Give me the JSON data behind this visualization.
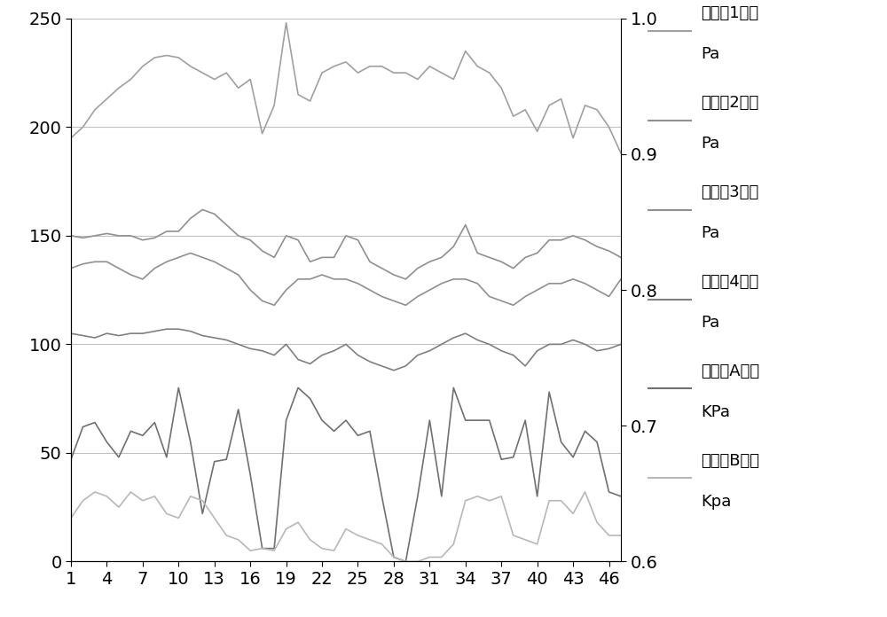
{
  "x": [
    1,
    2,
    3,
    4,
    5,
    6,
    7,
    8,
    9,
    10,
    11,
    12,
    13,
    14,
    15,
    16,
    17,
    18,
    19,
    20,
    21,
    22,
    23,
    24,
    25,
    26,
    27,
    28,
    29,
    30,
    31,
    32,
    33,
    34,
    35,
    36,
    37,
    38,
    39,
    40,
    41,
    42,
    43,
    44,
    45,
    46,
    47
  ],
  "series1": [
    195,
    200,
    208,
    213,
    218,
    222,
    228,
    232,
    233,
    232,
    228,
    225,
    222,
    225,
    218,
    222,
    197,
    210,
    248,
    215,
    212,
    225,
    228,
    230,
    225,
    228,
    228,
    225,
    225,
    222,
    228,
    225,
    222,
    235,
    228,
    225,
    218,
    205,
    208,
    198,
    210,
    213,
    195,
    210,
    208,
    200,
    188
  ],
  "series2": [
    150,
    149,
    150,
    151,
    150,
    150,
    148,
    149,
    152,
    152,
    158,
    162,
    160,
    155,
    150,
    148,
    143,
    140,
    150,
    148,
    138,
    140,
    140,
    150,
    148,
    138,
    135,
    132,
    130,
    135,
    138,
    140,
    145,
    155,
    142,
    140,
    138,
    135,
    140,
    142,
    148,
    148,
    150,
    148,
    145,
    143,
    140
  ],
  "series3": [
    135,
    137,
    138,
    138,
    135,
    132,
    130,
    135,
    138,
    140,
    142,
    140,
    138,
    135,
    132,
    125,
    120,
    118,
    125,
    130,
    130,
    132,
    130,
    130,
    128,
    125,
    122,
    120,
    118,
    122,
    125,
    128,
    130,
    130,
    128,
    122,
    120,
    118,
    122,
    125,
    128,
    128,
    130,
    128,
    125,
    122,
    130
  ],
  "series4": [
    105,
    104,
    103,
    105,
    104,
    105,
    105,
    106,
    107,
    107,
    106,
    104,
    103,
    102,
    100,
    98,
    97,
    95,
    100,
    93,
    91,
    95,
    97,
    100,
    95,
    92,
    90,
    88,
    90,
    95,
    97,
    100,
    103,
    105,
    102,
    100,
    97,
    95,
    90,
    97,
    100,
    100,
    102,
    100,
    97,
    98,
    100
  ],
  "series5": [
    47,
    62,
    64,
    55,
    48,
    60,
    58,
    64,
    48,
    80,
    55,
    22,
    46,
    47,
    70,
    40,
    6,
    6,
    65,
    80,
    75,
    65,
    60,
    65,
    58,
    60,
    30,
    2,
    0,
    30,
    65,
    30,
    80,
    65,
    65,
    65,
    47,
    48,
    65,
    30,
    78,
    55,
    48,
    60,
    55,
    32,
    30
  ],
  "series6": [
    20,
    28,
    32,
    30,
    25,
    32,
    28,
    30,
    22,
    20,
    30,
    28,
    20,
    12,
    10,
    5,
    6,
    5,
    15,
    18,
    10,
    6,
    5,
    15,
    12,
    10,
    8,
    2,
    0,
    0,
    2,
    2,
    8,
    28,
    30,
    28,
    30,
    12,
    10,
    8,
    28,
    28,
    22,
    32,
    18,
    12,
    12
  ],
  "left_ylim": [
    0,
    250
  ],
  "left_yticks": [
    0,
    50,
    100,
    150,
    200,
    250
  ],
  "right_ylim": [
    0.6,
    1.0
  ],
  "right_yticks": [
    0.6,
    0.7,
    0.8,
    0.9,
    1.0
  ],
  "xticks": [
    1,
    4,
    7,
    10,
    13,
    16,
    19,
    22,
    25,
    28,
    31,
    34,
    37,
    40,
    43,
    46
  ],
  "legend_labels_line1": [
    "烟冷器1差压",
    "烟冷器2差压",
    "烟冷器3差压",
    "烟冷器4差压",
    "空预器A差压",
    "空预器B差压"
  ],
  "legend_labels_line2": [
    "Pa",
    "Pa",
    "Pa",
    "Pa",
    "KPa",
    "Kpa"
  ],
  "line_colors": [
    "#a0a0a0",
    "#909090",
    "#909090",
    "#808080",
    "#707070",
    "#b8b8b8"
  ],
  "line_widths": [
    1.2,
    1.2,
    1.2,
    1.2,
    1.2,
    1.2
  ],
  "grid_color": "#c0c0c0",
  "bg_color": "#ffffff",
  "tick_fontsize": 14,
  "legend_fontsize": 13
}
